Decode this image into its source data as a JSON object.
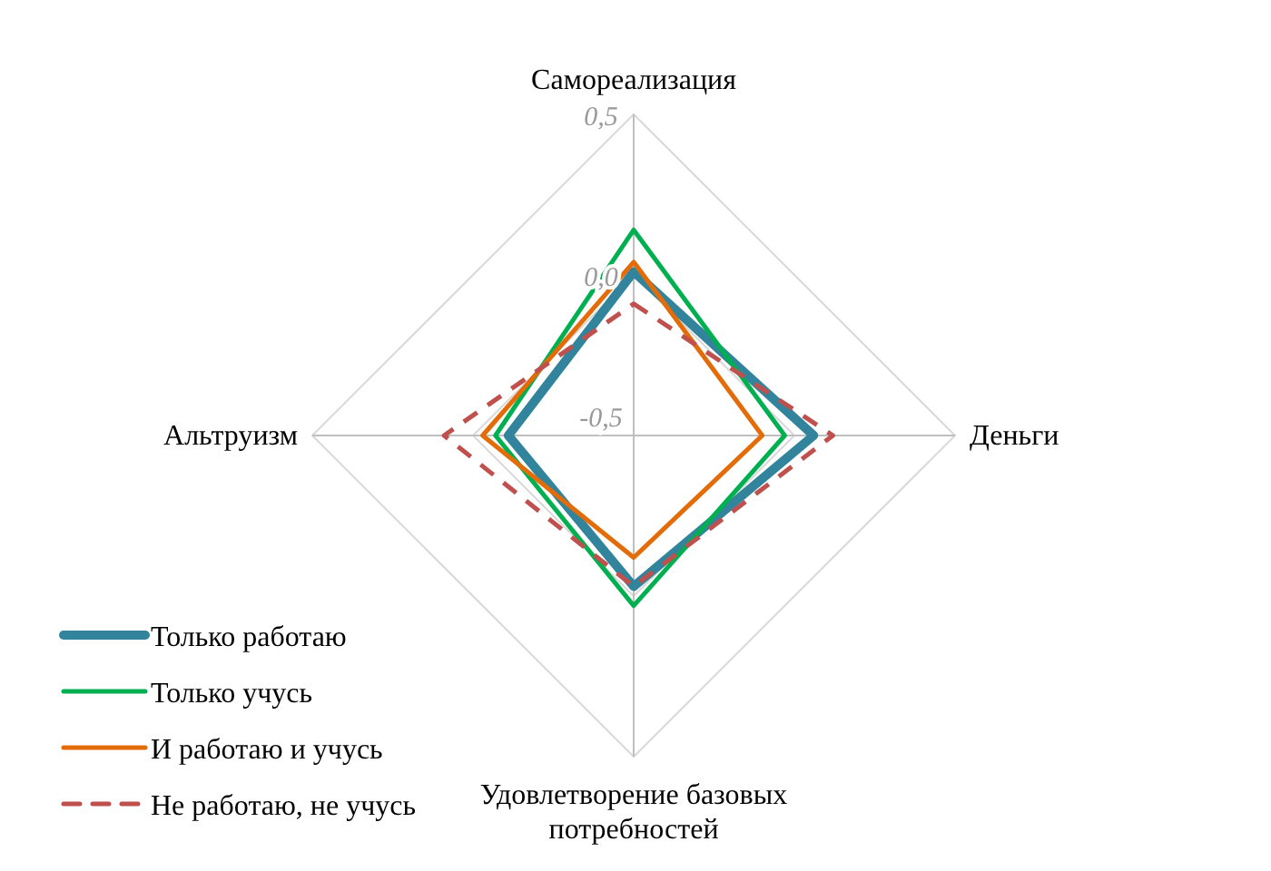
{
  "chart_data": {
    "type": "radar",
    "categories": [
      "Самореализация",
      "Деньги",
      "Удовлетворение базовых потребностей",
      "Альтруизм"
    ],
    "series": [
      {
        "name": "Только работаю",
        "color": "#31849b",
        "values": [
          0.01,
          0.06,
          -0.03,
          -0.11
        ]
      },
      {
        "name": "Только учусь",
        "color": "#00b050",
        "values": [
          0.14,
          -0.03,
          0.03,
          -0.07
        ]
      },
      {
        "name": "И работаю и учусь",
        "color": "#e36c09",
        "values": [
          0.04,
          -0.1,
          -0.12,
          -0.03
        ]
      },
      {
        "name": "Не работаю, не учусь",
        "color": "#c0504d",
        "values": [
          -0.09,
          0.12,
          -0.03,
          0.09
        ],
        "line_style": "dashed"
      }
    ],
    "ylim": [
      -0.5,
      0.5
    ],
    "yticks": [
      {
        "value": -0.5,
        "label": "-0,5"
      },
      {
        "value": 0,
        "label": "0,0"
      },
      {
        "value": 0.5,
        "label": "0,5"
      }
    ],
    "grid": true,
    "legend": "bottom left"
  }
}
